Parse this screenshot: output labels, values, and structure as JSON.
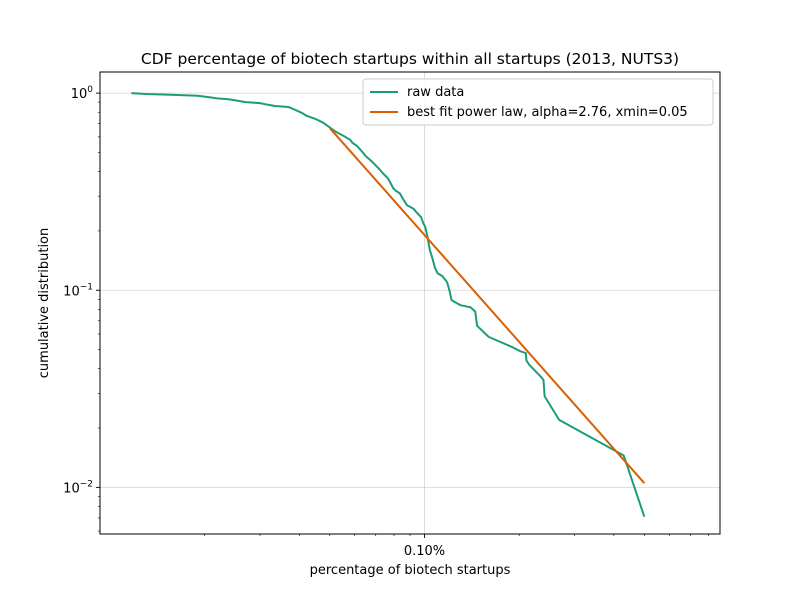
{
  "chart_data": {
    "type": "line",
    "title": "CDF percentage of biotech startups within all startups (2013, NUTS3)",
    "xlabel": "percentage of biotech startups",
    "ylabel": "cumulative distribution",
    "x_scale": "log",
    "y_scale": "log",
    "xlim": [
      0.0093,
      0.87
    ],
    "ylim": [
      0.0058,
      1.28
    ],
    "x_ticks": [
      {
        "value": 0.1,
        "label": "0.10%"
      }
    ],
    "y_ticks": [
      {
        "value": 1,
        "base": "10",
        "exp": "0"
      },
      {
        "value": 0.1,
        "base": "10",
        "exp": "−1"
      },
      {
        "value": 0.01,
        "base": "10",
        "exp": "−2"
      }
    ],
    "grid": true,
    "legend": {
      "placement": "top-right"
    },
    "series": [
      {
        "name": "raw data",
        "color": "#1b9e77",
        "x": [
          0.0117,
          0.013,
          0.016,
          0.019,
          0.021,
          0.022,
          0.024,
          0.027,
          0.03,
          0.031,
          0.0335,
          0.037,
          0.039,
          0.041,
          0.042,
          0.045,
          0.0475,
          0.05,
          0.052,
          0.055,
          0.058,
          0.059,
          0.061,
          0.063,
          0.065,
          0.067,
          0.069,
          0.071,
          0.072,
          0.074,
          0.0765,
          0.078,
          0.0795,
          0.081,
          0.0835,
          0.0855,
          0.088,
          0.092,
          0.094,
          0.0975,
          0.098,
          0.099,
          0.1005,
          0.102,
          0.104,
          0.106,
          0.108,
          0.11,
          0.114,
          0.118,
          0.12,
          0.122,
          0.13,
          0.14,
          0.145,
          0.147,
          0.16,
          0.19,
          0.197,
          0.202,
          0.21,
          0.211,
          0.215,
          0.236,
          0.239,
          0.241,
          0.268,
          0.43,
          0.5
        ],
        "y": [
          1.0,
          0.99,
          0.98,
          0.97,
          0.95,
          0.94,
          0.93,
          0.9,
          0.89,
          0.88,
          0.86,
          0.85,
          0.82,
          0.79,
          0.77,
          0.74,
          0.71,
          0.67,
          0.64,
          0.61,
          0.58,
          0.56,
          0.54,
          0.51,
          0.48,
          0.46,
          0.44,
          0.42,
          0.41,
          0.39,
          0.37,
          0.35,
          0.33,
          0.32,
          0.31,
          0.29,
          0.27,
          0.26,
          0.25,
          0.235,
          0.23,
          0.22,
          0.21,
          0.19,
          0.16,
          0.145,
          0.13,
          0.122,
          0.118,
          0.11,
          0.1,
          0.089,
          0.084,
          0.082,
          0.078,
          0.066,
          0.058,
          0.0515,
          0.05,
          0.049,
          0.048,
          0.044,
          0.042,
          0.036,
          0.035,
          0.029,
          0.022,
          0.0145,
          0.0071
        ]
      },
      {
        "name": "best fit power law, alpha=2.76, xmin=0.05",
        "color": "#d95f02",
        "x": [
          0.05,
          0.5
        ],
        "y": [
          0.665,
          0.0105
        ]
      }
    ]
  }
}
